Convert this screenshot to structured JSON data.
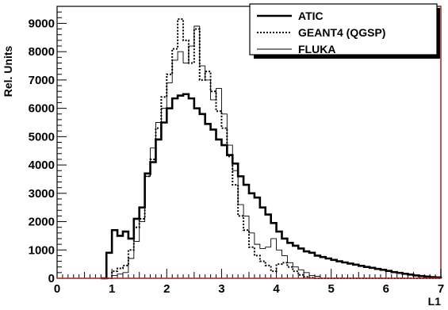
{
  "chart_data": {
    "type": "line",
    "title": "",
    "xlabel": "L1",
    "ylabel": "Rel. Units",
    "xlim": [
      0,
      7
    ],
    "ylim": [
      0,
      9600
    ],
    "x_ticks": [
      "0",
      "1",
      "2",
      "3",
      "4",
      "5",
      "6",
      "7"
    ],
    "y_ticks": [
      "0",
      "1000",
      "2000",
      "3000",
      "4000",
      "5000",
      "6000",
      "7000",
      "8000",
      "9000"
    ],
    "grid": false,
    "legend_position": "top-right",
    "bin_width": 0.1,
    "x": [
      0.8,
      0.9,
      1.0,
      1.1,
      1.2,
      1.3,
      1.4,
      1.5,
      1.6,
      1.7,
      1.8,
      1.9,
      2.0,
      2.1,
      2.2,
      2.3,
      2.4,
      2.5,
      2.6,
      2.7,
      2.8,
      2.9,
      3.0,
      3.1,
      3.2,
      3.3,
      3.4,
      3.5,
      3.6,
      3.7,
      3.8,
      3.9,
      4.0,
      4.1,
      4.2,
      4.3,
      4.4,
      4.5,
      4.6,
      4.7,
      4.8,
      4.9,
      5.0,
      5.1,
      5.2,
      5.3,
      5.4,
      5.5,
      5.6,
      5.7,
      5.8,
      5.9,
      6.0,
      6.1,
      6.2,
      6.3,
      6.4,
      6.5,
      6.6,
      6.7,
      6.8,
      6.9
    ],
    "series": [
      {
        "name": "ATIC",
        "style": "thick-solid",
        "values": [
          0,
          900,
          1700,
          1500,
          1650,
          1400,
          2100,
          2500,
          3700,
          4100,
          4900,
          5500,
          6000,
          6350,
          6450,
          6500,
          6350,
          6000,
          5800,
          5450,
          5250,
          4900,
          4700,
          4350,
          4050,
          3600,
          3300,
          3000,
          2850,
          2500,
          2250,
          1950,
          1650,
          1400,
          1250,
          1150,
          1050,
          950,
          900,
          800,
          750,
          700,
          650,
          600,
          560,
          520,
          480,
          440,
          400,
          370,
          330,
          300,
          260,
          220,
          190,
          160,
          130,
          100,
          80,
          60,
          40,
          30
        ]
      },
      {
        "name": "GEANT4 (QGSP)",
        "style": "dotted",
        "values": [
          0,
          0,
          250,
          350,
          450,
          1000,
          1800,
          2100,
          3600,
          4200,
          5300,
          6400,
          7200,
          8100,
          9150,
          8400,
          7600,
          8800,
          7000,
          7300,
          6600,
          5900,
          5300,
          4300,
          3300,
          2200,
          1700,
          1100,
          800,
          600,
          450,
          250,
          500,
          550,
          400,
          250,
          120,
          50,
          20,
          0,
          0,
          0,
          0,
          0,
          0,
          0,
          0,
          0,
          0,
          0,
          0,
          0,
          0,
          0,
          0,
          0,
          0,
          0,
          0,
          0,
          0,
          0
        ]
      },
      {
        "name": "FLUKA",
        "style": "thin-solid",
        "values": [
          0,
          0,
          100,
          150,
          200,
          700,
          1300,
          2000,
          3600,
          4600,
          5500,
          6000,
          6900,
          7700,
          8000,
          7600,
          8200,
          8900,
          7500,
          7000,
          6300,
          6700,
          5800,
          4700,
          3800,
          2600,
          2200,
          1600,
          1200,
          1050,
          1100,
          1400,
          1000,
          800,
          550,
          400,
          300,
          200,
          100,
          70,
          0,
          0,
          0,
          0,
          0,
          0,
          0,
          0,
          0,
          0,
          0,
          0,
          0,
          0,
          0,
          0,
          0,
          0,
          0,
          0,
          0,
          0
        ]
      }
    ]
  }
}
